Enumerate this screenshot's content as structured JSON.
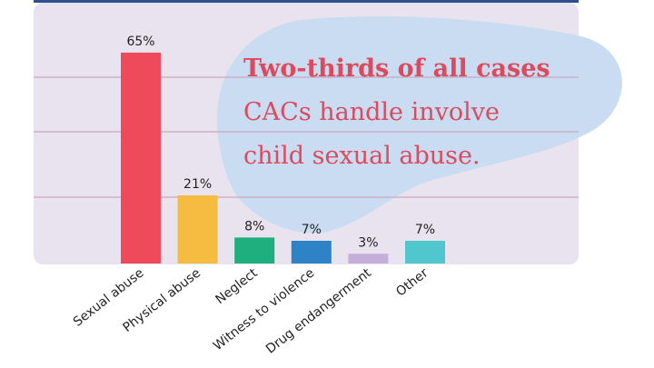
{
  "chart_data": {
    "type": "bar",
    "categories": [
      "Sexual abuse",
      "Physical abuse",
      "Neglect",
      "Witness to violence",
      "Drug endangerment",
      "Other"
    ],
    "values": [
      65,
      21,
      8,
      7,
      3,
      7
    ],
    "value_labels": [
      "65%",
      "21%",
      "8%",
      "7%",
      "3%",
      "7%"
    ],
    "colors": [
      "#ef4a5c",
      "#f4bd42",
      "#1fae7e",
      "#2e82c6",
      "#c6aedb",
      "#4fc7cc"
    ],
    "ylim": [
      0,
      70
    ],
    "grid": true,
    "title": "",
    "xlabel": "",
    "ylabel": ""
  },
  "annotation": {
    "line1": "Two-thirds of all cases",
    "line2": "CACs handle involve",
    "line3": "child sexual abuse.",
    "color": "#de4a5d"
  },
  "colors": {
    "panel_bg": "#e8e3ee",
    "blob": "#c9dcf1",
    "gridline": "#c8a9bf",
    "frame_top": "#2f4f8f",
    "label_text": "#222222"
  }
}
